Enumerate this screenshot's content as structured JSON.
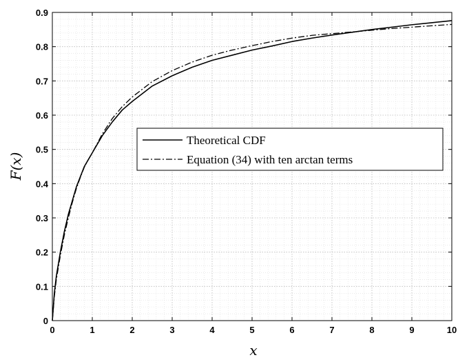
{
  "chart_data": {
    "type": "line",
    "xlabel": "x",
    "ylabel": "F(x)",
    "xlim": [
      0,
      10
    ],
    "ylim": [
      0,
      0.9
    ],
    "xticks": [
      0,
      1,
      2,
      3,
      4,
      5,
      6,
      7,
      8,
      9,
      10
    ],
    "yticks": [
      0,
      0.1,
      0.2,
      0.3,
      0.4,
      0.5,
      0.6,
      0.7,
      0.8,
      0.9
    ],
    "xtick_labels": [
      "0",
      "1",
      "2",
      "3",
      "4",
      "5",
      "6",
      "7",
      "8",
      "9",
      "10"
    ],
    "ytick_labels": [
      "0",
      "0.1",
      "0.2",
      "0.3",
      "0.4",
      "0.5",
      "0.6",
      "0.7",
      "0.8",
      "0.9"
    ],
    "grid": true,
    "minor_grid": true,
    "legend_position": "center-right",
    "series": [
      {
        "name": "Theoretical CDF",
        "style": "solid",
        "color": "#000000",
        "x": [
          0,
          0.05,
          0.1,
          0.2,
          0.3,
          0.4,
          0.5,
          0.6,
          0.7,
          0.8,
          0.9,
          1.0,
          1.25,
          1.5,
          1.75,
          2.0,
          2.5,
          3.0,
          3.5,
          4.0,
          4.5,
          5.0,
          5.5,
          6.0,
          6.5,
          7.0,
          7.5,
          8.0,
          8.5,
          9.0,
          9.5,
          10.0
        ],
        "y": [
          0,
          0.08,
          0.13,
          0.2,
          0.26,
          0.31,
          0.35,
          0.39,
          0.42,
          0.45,
          0.47,
          0.49,
          0.54,
          0.58,
          0.615,
          0.64,
          0.685,
          0.715,
          0.74,
          0.76,
          0.775,
          0.79,
          0.802,
          0.815,
          0.825,
          0.834,
          0.842,
          0.85,
          0.857,
          0.864,
          0.87,
          0.876
        ]
      },
      {
        "name": "Equation (34) with ten arctan terms",
        "style": "dashdot",
        "color": "#000000",
        "x": [
          0,
          0.05,
          0.1,
          0.2,
          0.3,
          0.4,
          0.5,
          0.6,
          0.7,
          0.8,
          0.9,
          1.0,
          1.25,
          1.5,
          1.75,
          2.0,
          2.5,
          3.0,
          3.5,
          4.0,
          4.5,
          5.0,
          5.5,
          6.0,
          6.5,
          7.0,
          7.5,
          8.0,
          8.5,
          9.0,
          9.5,
          10.0
        ],
        "y": [
          0,
          0.07,
          0.12,
          0.19,
          0.25,
          0.3,
          0.345,
          0.385,
          0.418,
          0.448,
          0.47,
          0.49,
          0.545,
          0.59,
          0.625,
          0.653,
          0.698,
          0.73,
          0.755,
          0.775,
          0.79,
          0.803,
          0.815,
          0.825,
          0.833,
          0.838,
          0.843,
          0.848,
          0.853,
          0.857,
          0.861,
          0.865
        ]
      }
    ]
  }
}
